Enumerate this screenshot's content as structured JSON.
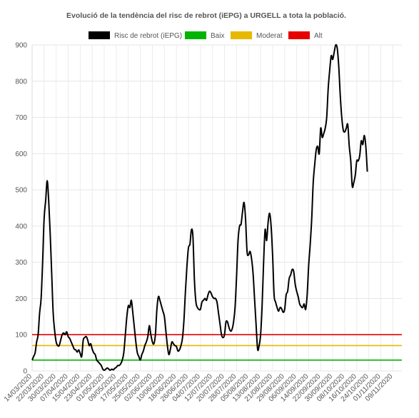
{
  "chart_data": {
    "type": "line",
    "title": "Evolució de la tendència del risc de rebrot (iEPG) a URGELL a tota la població.",
    "xlabel": "",
    "ylabel": "",
    "ylim": [
      0,
      900
    ],
    "yticks": [
      0,
      100,
      200,
      300,
      400,
      500,
      600,
      700,
      800,
      900
    ],
    "grid": true,
    "legend_position": "top",
    "x_tick_labels": [
      "14/03/2020",
      "22/03/2020",
      "30/03/2020",
      "07/04/2020",
      "15/04/2020",
      "23/04/2020",
      "01/05/2020",
      "09/05/2020",
      "17/05/2020",
      "25/05/2020",
      "02/06/2020",
      "10/06/2020",
      "18/06/2020",
      "26/06/2020",
      "04/07/2020",
      "12/07/2020",
      "20/07/2020",
      "28/07/2020",
      "05/08/2020",
      "13/08/2020",
      "21/08/2020",
      "29/08/2020",
      "06/09/2020",
      "14/09/2020",
      "22/09/2020",
      "30/09/2020",
      "08/10/2020",
      "16/10/2020",
      "24/10/2020",
      "01/11/2020",
      "09/11/2020"
    ],
    "x_start": "14/03/2020",
    "x_end": "15/11/2020",
    "series": [
      {
        "name": "Risc de rebrot (iEPG)",
        "color": "#000000",
        "points": [
          [
            "14/03/2020",
            30
          ],
          [
            "15/03/2020",
            40
          ],
          [
            "16/03/2020",
            50
          ],
          [
            "17/03/2020",
            80
          ],
          [
            "18/03/2020",
            100
          ],
          [
            "19/03/2020",
            160
          ],
          [
            "20/03/2020",
            200
          ],
          [
            "21/03/2020",
            300
          ],
          [
            "22/03/2020",
            420
          ],
          [
            "23/03/2020",
            470
          ],
          [
            "24/03/2020",
            525
          ],
          [
            "25/03/2020",
            470
          ],
          [
            "26/03/2020",
            380
          ],
          [
            "27/03/2020",
            270
          ],
          [
            "28/03/2020",
            160
          ],
          [
            "29/03/2020",
            110
          ],
          [
            "30/03/2020",
            80
          ],
          [
            "31/03/2020",
            70
          ],
          [
            "01/04/2020",
            70
          ],
          [
            "02/04/2020",
            85
          ],
          [
            "03/04/2020",
            100
          ],
          [
            "04/04/2020",
            105
          ],
          [
            "05/04/2020",
            100
          ],
          [
            "06/04/2020",
            108
          ],
          [
            "07/04/2020",
            95
          ],
          [
            "08/04/2020",
            90
          ],
          [
            "09/04/2020",
            80
          ],
          [
            "10/04/2020",
            70
          ],
          [
            "11/04/2020",
            60
          ],
          [
            "12/04/2020",
            58
          ],
          [
            "13/04/2020",
            52
          ],
          [
            "14/04/2020",
            58
          ],
          [
            "15/04/2020",
            48
          ],
          [
            "16/04/2020",
            40
          ],
          [
            "17/04/2020",
            85
          ],
          [
            "18/04/2020",
            92
          ],
          [
            "19/04/2020",
            95
          ],
          [
            "20/04/2020",
            85
          ],
          [
            "21/04/2020",
            70
          ],
          [
            "22/04/2020",
            75
          ],
          [
            "23/04/2020",
            60
          ],
          [
            "24/04/2020",
            50
          ],
          [
            "25/04/2020",
            45
          ],
          [
            "26/04/2020",
            30
          ],
          [
            "27/04/2020",
            25
          ],
          [
            "28/04/2020",
            20
          ],
          [
            "29/04/2020",
            15
          ],
          [
            "30/04/2020",
            5
          ],
          [
            "01/05/2020",
            2
          ],
          [
            "02/05/2020",
            5
          ],
          [
            "03/05/2020",
            8
          ],
          [
            "04/05/2020",
            5
          ],
          [
            "05/05/2020",
            2
          ],
          [
            "06/05/2020",
            5
          ],
          [
            "07/05/2020",
            3
          ],
          [
            "08/05/2020",
            7
          ],
          [
            "09/05/2020",
            10
          ],
          [
            "10/05/2020",
            15
          ],
          [
            "11/05/2020",
            15
          ],
          [
            "12/05/2020",
            20
          ],
          [
            "13/05/2020",
            30
          ],
          [
            "14/05/2020",
            50
          ],
          [
            "15/05/2020",
            100
          ],
          [
            "16/05/2020",
            150
          ],
          [
            "17/05/2020",
            180
          ],
          [
            "18/05/2020",
            175
          ],
          [
            "19/05/2020",
            195
          ],
          [
            "20/05/2020",
            160
          ],
          [
            "21/05/2020",
            120
          ],
          [
            "22/05/2020",
            80
          ],
          [
            "23/05/2020",
            50
          ],
          [
            "24/05/2020",
            40
          ],
          [
            "25/05/2020",
            30
          ],
          [
            "26/05/2020",
            45
          ],
          [
            "27/05/2020",
            55
          ],
          [
            "28/05/2020",
            70
          ],
          [
            "29/05/2020",
            80
          ],
          [
            "30/05/2020",
            95
          ],
          [
            "31/05/2020",
            125
          ],
          [
            "01/06/2020",
            100
          ],
          [
            "02/06/2020",
            80
          ],
          [
            "03/06/2020",
            75
          ],
          [
            "04/06/2020",
            100
          ],
          [
            "05/06/2020",
            170
          ],
          [
            "06/06/2020",
            205
          ],
          [
            "07/06/2020",
            195
          ],
          [
            "08/06/2020",
            180
          ],
          [
            "09/06/2020",
            165
          ],
          [
            "10/06/2020",
            150
          ],
          [
            "11/06/2020",
            110
          ],
          [
            "12/06/2020",
            70
          ],
          [
            "13/06/2020",
            45
          ],
          [
            "14/06/2020",
            60
          ],
          [
            "15/06/2020",
            80
          ],
          [
            "16/06/2020",
            75
          ],
          [
            "17/06/2020",
            70
          ],
          [
            "18/06/2020",
            68
          ],
          [
            "19/06/2020",
            55
          ],
          [
            "20/06/2020",
            58
          ],
          [
            "21/06/2020",
            70
          ],
          [
            "22/06/2020",
            90
          ],
          [
            "23/06/2020",
            140
          ],
          [
            "24/06/2020",
            220
          ],
          [
            "25/06/2020",
            290
          ],
          [
            "26/06/2020",
            340
          ],
          [
            "27/06/2020",
            350
          ],
          [
            "28/06/2020",
            390
          ],
          [
            "29/06/2020",
            370
          ],
          [
            "30/06/2020",
            250
          ],
          [
            "01/07/2020",
            190
          ],
          [
            "02/07/2020",
            175
          ],
          [
            "03/07/2020",
            170
          ],
          [
            "04/07/2020",
            170
          ],
          [
            "05/07/2020",
            190
          ],
          [
            "06/07/2020",
            195
          ],
          [
            "07/07/2020",
            200
          ],
          [
            "08/07/2020",
            195
          ],
          [
            "09/07/2020",
            210
          ],
          [
            "10/07/2020",
            220
          ],
          [
            "11/07/2020",
            215
          ],
          [
            "12/07/2020",
            205
          ],
          [
            "13/07/2020",
            200
          ],
          [
            "14/07/2020",
            200
          ],
          [
            "15/07/2020",
            190
          ],
          [
            "16/07/2020",
            160
          ],
          [
            "17/07/2020",
            130
          ],
          [
            "18/07/2020",
            100
          ],
          [
            "19/07/2020",
            92
          ],
          [
            "20/07/2020",
            100
          ],
          [
            "21/07/2020",
            135
          ],
          [
            "22/07/2020",
            135
          ],
          [
            "23/07/2020",
            120
          ],
          [
            "24/07/2020",
            110
          ],
          [
            "25/07/2020",
            115
          ],
          [
            "26/07/2020",
            135
          ],
          [
            "27/07/2020",
            175
          ],
          [
            "28/07/2020",
            260
          ],
          [
            "29/07/2020",
            360
          ],
          [
            "30/07/2020",
            400
          ],
          [
            "31/07/2020",
            405
          ],
          [
            "01/08/2020",
            440
          ],
          [
            "02/08/2020",
            465
          ],
          [
            "03/08/2020",
            420
          ],
          [
            "04/08/2020",
            330
          ],
          [
            "05/08/2020",
            320
          ],
          [
            "06/08/2020",
            330
          ],
          [
            "07/08/2020",
            310
          ],
          [
            "08/08/2020",
            270
          ],
          [
            "09/08/2020",
            200
          ],
          [
            "10/08/2020",
            130
          ],
          [
            "11/08/2020",
            60
          ],
          [
            "12/08/2020",
            70
          ],
          [
            "13/08/2020",
            100
          ],
          [
            "14/08/2020",
            180
          ],
          [
            "15/08/2020",
            300
          ],
          [
            "16/08/2020",
            390
          ],
          [
            "17/08/2020",
            360
          ],
          [
            "18/08/2020",
            410
          ],
          [
            "19/08/2020",
            435
          ],
          [
            "20/08/2020",
            400
          ],
          [
            "21/08/2020",
            320
          ],
          [
            "22/08/2020",
            210
          ],
          [
            "23/08/2020",
            190
          ],
          [
            "24/08/2020",
            175
          ],
          [
            "25/08/2020",
            165
          ],
          [
            "26/08/2020",
            175
          ],
          [
            "27/08/2020",
            172
          ],
          [
            "28/08/2020",
            162
          ],
          [
            "29/08/2020",
            170
          ],
          [
            "30/08/2020",
            210
          ],
          [
            "31/08/2020",
            220
          ],
          [
            "01/09/2020",
            255
          ],
          [
            "02/09/2020",
            265
          ],
          [
            "03/09/2020",
            280
          ],
          [
            "04/09/2020",
            275
          ],
          [
            "05/09/2020",
            240
          ],
          [
            "06/09/2020",
            220
          ],
          [
            "07/09/2020",
            205
          ],
          [
            "08/09/2020",
            185
          ],
          [
            "09/09/2020",
            178
          ],
          [
            "10/09/2020",
            175
          ],
          [
            "11/09/2020",
            185
          ],
          [
            "12/09/2020",
            170
          ],
          [
            "13/09/2020",
            210
          ],
          [
            "14/09/2020",
            290
          ],
          [
            "15/09/2020",
            350
          ],
          [
            "16/09/2020",
            420
          ],
          [
            "17/09/2020",
            520
          ],
          [
            "18/09/2020",
            570
          ],
          [
            "19/09/2020",
            610
          ],
          [
            "20/09/2020",
            620
          ],
          [
            "21/09/2020",
            600
          ],
          [
            "22/09/2020",
            670
          ],
          [
            "23/09/2020",
            645
          ],
          [
            "24/09/2020",
            655
          ],
          [
            "25/09/2020",
            670
          ],
          [
            "26/09/2020",
            700
          ],
          [
            "27/09/2020",
            780
          ],
          [
            "28/09/2020",
            830
          ],
          [
            "29/09/2020",
            870
          ],
          [
            "30/09/2020",
            860
          ],
          [
            "01/10/2020",
            880
          ],
          [
            "02/10/2020",
            900
          ],
          [
            "03/10/2020",
            890
          ],
          [
            "04/10/2020",
            840
          ],
          [
            "05/10/2020",
            760
          ],
          [
            "06/10/2020",
            700
          ],
          [
            "07/10/2020",
            665
          ],
          [
            "08/10/2020",
            660
          ],
          [
            "09/10/2020",
            670
          ],
          [
            "10/10/2020",
            680
          ],
          [
            "11/10/2020",
            620
          ],
          [
            "12/10/2020",
            580
          ],
          [
            "13/10/2020",
            510
          ],
          [
            "14/10/2020",
            520
          ],
          [
            "15/10/2020",
            540
          ],
          [
            "16/10/2020",
            580
          ],
          [
            "17/10/2020",
            580
          ],
          [
            "18/10/2020",
            595
          ],
          [
            "19/10/2020",
            635
          ],
          [
            "20/10/2020",
            625
          ],
          [
            "21/10/2020",
            650
          ],
          [
            "22/10/2020",
            620
          ],
          [
            "23/10/2020",
            550
          ]
        ]
      },
      {
        "name": "Baix",
        "color": "#00b400",
        "constant": 30
      },
      {
        "name": "Moderat",
        "color": "#e6b800",
        "constant": 70
      },
      {
        "name": "Alt",
        "color": "#e60000",
        "constant": 100
      }
    ]
  }
}
